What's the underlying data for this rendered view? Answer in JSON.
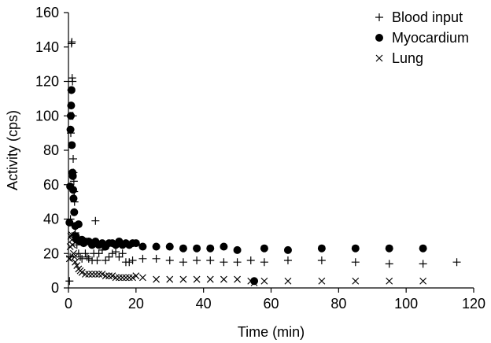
{
  "chart_data": {
    "type": "scatter",
    "title": "",
    "xlabel": "Time (min)",
    "ylabel": "Activity (cps)",
    "xlim": [
      0,
      120
    ],
    "ylim": [
      0,
      160
    ],
    "xticks": [
      "0",
      "20",
      "40",
      "60",
      "80",
      "100",
      "120"
    ],
    "yticks": [
      "0",
      "20",
      "40",
      "60",
      "80",
      "100",
      "120",
      "140",
      "160"
    ],
    "grid": false,
    "legend_position": "top-right",
    "colors": {
      "axis": "#000000",
      "marker": "#000000",
      "background": "#ffffff"
    },
    "series": [
      {
        "name": "Blood input",
        "marker": "plus",
        "points": [
          [
            0.3,
            4
          ],
          [
            0.5,
            18
          ],
          [
            0.6,
            40
          ],
          [
            0.7,
            90
          ],
          [
            0.8,
            115
          ],
          [
            0.9,
            142
          ],
          [
            1.0,
            143
          ],
          [
            1.1,
            122
          ],
          [
            1.2,
            120
          ],
          [
            1.3,
            100
          ],
          [
            1.4,
            75
          ],
          [
            1.5,
            67
          ],
          [
            1.6,
            62
          ],
          [
            1.7,
            56
          ],
          [
            1.8,
            50
          ],
          [
            2.0,
            32
          ],
          [
            2.2,
            28
          ],
          [
            2.5,
            25
          ],
          [
            3.0,
            20
          ],
          [
            3.5,
            18
          ],
          [
            4.0,
            17
          ],
          [
            5.0,
            20
          ],
          [
            5.5,
            18
          ],
          [
            6.0,
            17
          ],
          [
            7.0,
            16
          ],
          [
            7.5,
            20
          ],
          [
            8.0,
            39
          ],
          [
            8.5,
            16
          ],
          [
            9.0,
            20
          ],
          [
            10.0,
            22
          ],
          [
            11.0,
            16
          ],
          [
            12.0,
            18
          ],
          [
            13.0,
            20
          ],
          [
            14.0,
            21
          ],
          [
            15.0,
            18
          ],
          [
            16.0,
            20
          ],
          [
            17.0,
            15
          ],
          [
            18.0,
            15
          ],
          [
            19.0,
            16
          ],
          [
            22.0,
            17
          ],
          [
            26.0,
            17
          ],
          [
            30.0,
            16
          ],
          [
            34.0,
            15
          ],
          [
            38.0,
            16
          ],
          [
            42.0,
            16
          ],
          [
            46.0,
            15
          ],
          [
            50.0,
            15
          ],
          [
            54.0,
            16
          ],
          [
            58.0,
            15
          ],
          [
            65.0,
            16
          ],
          [
            75.0,
            16
          ],
          [
            85.0,
            15
          ],
          [
            95.0,
            14
          ],
          [
            105.0,
            14
          ],
          [
            115.0,
            15
          ]
        ]
      },
      {
        "name": "Myocardium",
        "marker": "dot",
        "points": [
          [
            0.3,
            38
          ],
          [
            0.5,
            59
          ],
          [
            0.6,
            92
          ],
          [
            0.7,
            100
          ],
          [
            0.8,
            106
          ],
          [
            0.9,
            115
          ],
          [
            1.0,
            83
          ],
          [
            1.2,
            67
          ],
          [
            1.3,
            65
          ],
          [
            1.4,
            57
          ],
          [
            1.5,
            52
          ],
          [
            1.7,
            44
          ],
          [
            2.0,
            36
          ],
          [
            2.2,
            30
          ],
          [
            2.5,
            28
          ],
          [
            3.0,
            37
          ],
          [
            3.5,
            27
          ],
          [
            4.0,
            28
          ],
          [
            4.5,
            26
          ],
          [
            5.0,
            27
          ],
          [
            6.0,
            27
          ],
          [
            7.0,
            25
          ],
          [
            8.0,
            27
          ],
          [
            9.0,
            25
          ],
          [
            10.0,
            26
          ],
          [
            11.0,
            24
          ],
          [
            12.0,
            26
          ],
          [
            13.0,
            26
          ],
          [
            14.0,
            25
          ],
          [
            15.0,
            27
          ],
          [
            16.0,
            25
          ],
          [
            17.0,
            26
          ],
          [
            18.0,
            25
          ],
          [
            19.0,
            26
          ],
          [
            20.0,
            26
          ],
          [
            22.0,
            24
          ],
          [
            26.0,
            24
          ],
          [
            30.0,
            24
          ],
          [
            34.0,
            23
          ],
          [
            38.0,
            23
          ],
          [
            42.0,
            23
          ],
          [
            46.0,
            24
          ],
          [
            50.0,
            22
          ],
          [
            55.0,
            4
          ],
          [
            58.0,
            23
          ],
          [
            65.0,
            22
          ],
          [
            75.0,
            23
          ],
          [
            85.0,
            23
          ],
          [
            95.0,
            23
          ],
          [
            105.0,
            23
          ]
        ]
      },
      {
        "name": "Lung",
        "marker": "cross",
        "points": [
          [
            0.3,
            17
          ],
          [
            0.5,
            24
          ],
          [
            0.7,
            30
          ],
          [
            0.9,
            31
          ],
          [
            1.0,
            28
          ],
          [
            1.2,
            25
          ],
          [
            1.5,
            20
          ],
          [
            1.8,
            18
          ],
          [
            2.0,
            15
          ],
          [
            2.5,
            13
          ],
          [
            3.0,
            11
          ],
          [
            3.5,
            10
          ],
          [
            4.0,
            9
          ],
          [
            5.0,
            8
          ],
          [
            6.0,
            8
          ],
          [
            7.0,
            8
          ],
          [
            8.0,
            8
          ],
          [
            9.0,
            8
          ],
          [
            10.0,
            8
          ],
          [
            11.0,
            7
          ],
          [
            12.0,
            7
          ],
          [
            13.0,
            7
          ],
          [
            14.0,
            6
          ],
          [
            15.0,
            6
          ],
          [
            16.0,
            6
          ],
          [
            17.0,
            6
          ],
          [
            18.0,
            6
          ],
          [
            19.0,
            6
          ],
          [
            20.0,
            7
          ],
          [
            22.0,
            6
          ],
          [
            26.0,
            5
          ],
          [
            30.0,
            5
          ],
          [
            34.0,
            5
          ],
          [
            38.0,
            5
          ],
          [
            42.0,
            5
          ],
          [
            46.0,
            5
          ],
          [
            50.0,
            5
          ],
          [
            54.0,
            4
          ],
          [
            55.0,
            3
          ],
          [
            58.0,
            4
          ],
          [
            65.0,
            4
          ],
          [
            75.0,
            4
          ],
          [
            85.0,
            4
          ],
          [
            95.0,
            4
          ],
          [
            105.0,
            4
          ]
        ]
      }
    ]
  }
}
